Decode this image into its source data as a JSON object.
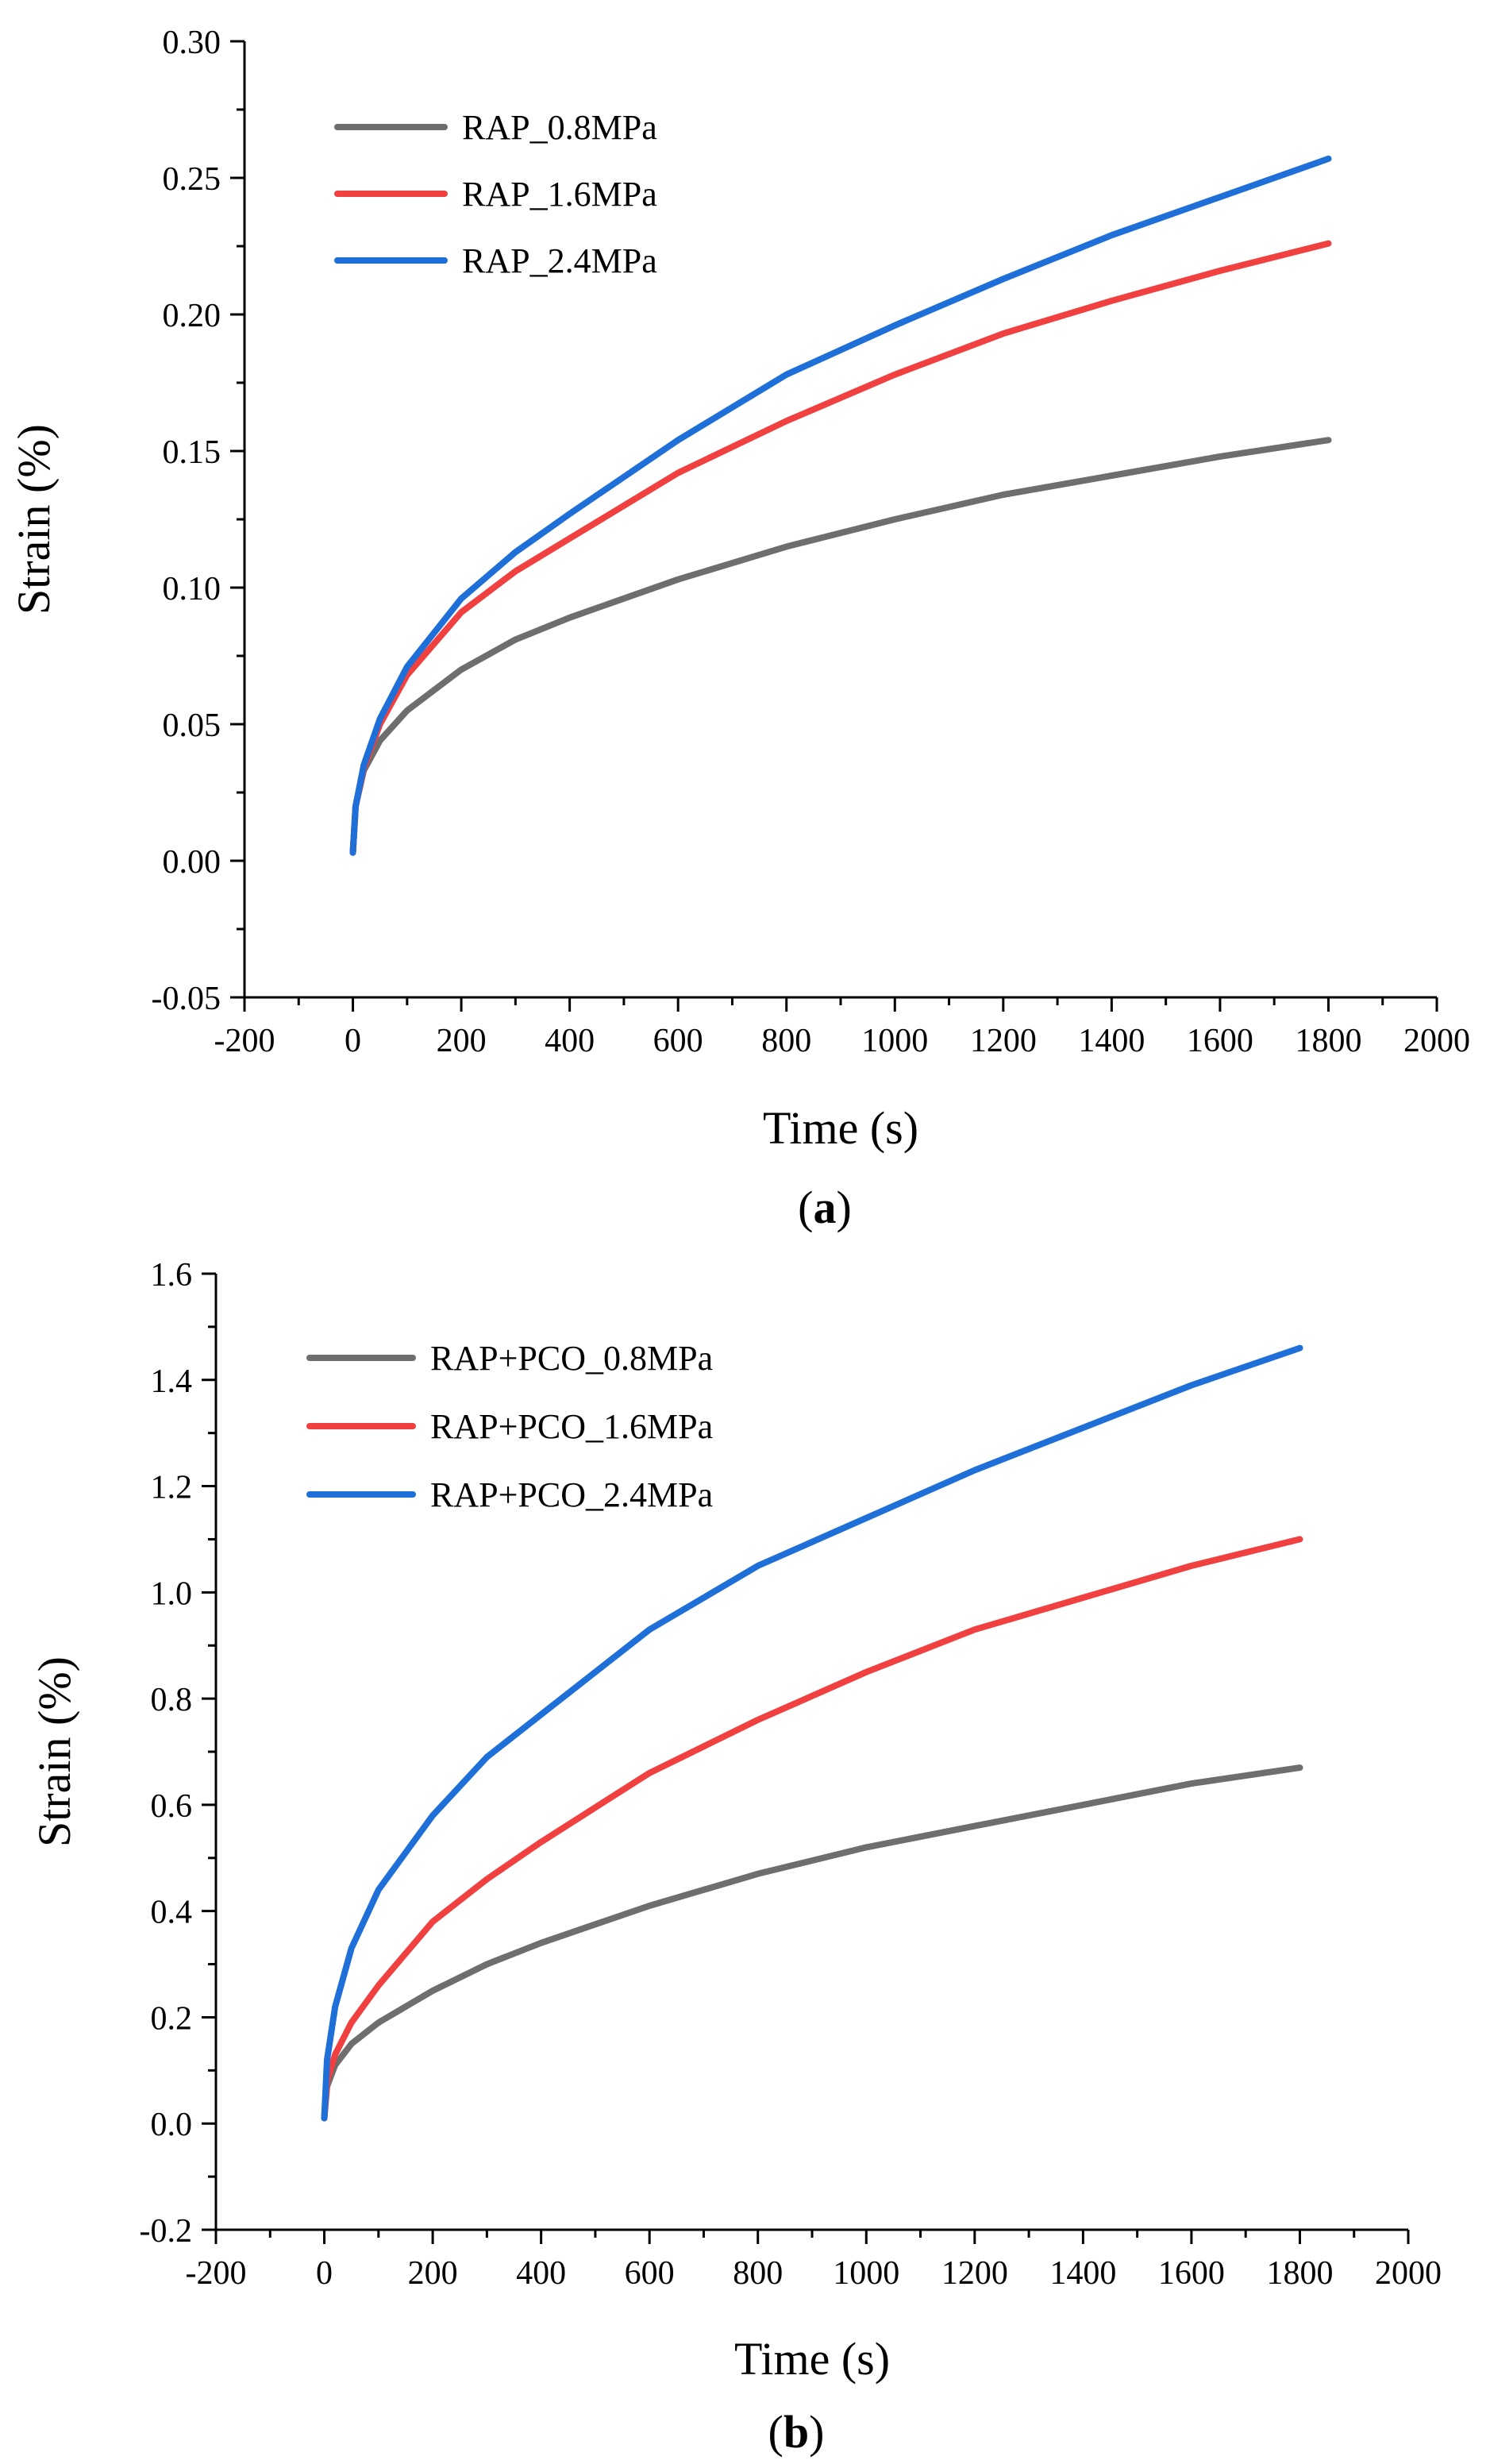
{
  "chart_data": [
    {
      "type": "line",
      "panel_label": "a",
      "xlabel": "Time (s)",
      "ylabel": "Strain (%)",
      "xlim": [
        -200,
        2000
      ],
      "ylim": [
        -0.05,
        0.3
      ],
      "x_ticks": [
        -200,
        0,
        200,
        400,
        600,
        800,
        1000,
        1200,
        1400,
        1600,
        1800,
        2000
      ],
      "x_tick_labels": [
        "-200",
        "0",
        "200",
        "400",
        "600",
        "800",
        "1000",
        "1200",
        "1400",
        "1600",
        "1800",
        "2000"
      ],
      "y_ticks": [
        -0.05,
        0.0,
        0.05,
        0.1,
        0.15,
        0.2,
        0.25,
        0.3
      ],
      "y_tick_labels": [
        "-0.05",
        "0.00",
        "0.05",
        "0.10",
        "0.15",
        "0.20",
        "0.25",
        "0.30"
      ],
      "legend_position": "top-left",
      "grid": false,
      "x": [
        0,
        5,
        20,
        50,
        100,
        200,
        300,
        400,
        600,
        800,
        1000,
        1200,
        1400,
        1600,
        1800
      ],
      "series": [
        {
          "name": "RAP_0.8MPa",
          "color": "#6e6e6e",
          "values": [
            0.003,
            0.02,
            0.033,
            0.044,
            0.055,
            0.07,
            0.081,
            0.089,
            0.103,
            0.115,
            0.125,
            0.134,
            0.141,
            0.148,
            0.154
          ]
        },
        {
          "name": "RAP_1.6MPa",
          "color": "#f04040",
          "values": [
            0.003,
            0.02,
            0.034,
            0.05,
            0.068,
            0.091,
            0.106,
            0.118,
            0.142,
            0.161,
            0.178,
            0.193,
            0.205,
            0.216,
            0.226
          ]
        },
        {
          "name": "RAP_2.4MPa",
          "color": "#1f6fd8",
          "values": [
            0.003,
            0.02,
            0.035,
            0.052,
            0.071,
            0.096,
            0.113,
            0.127,
            0.154,
            0.178,
            0.196,
            0.213,
            0.229,
            0.243,
            0.257
          ]
        }
      ]
    },
    {
      "type": "line",
      "panel_label": "b",
      "xlabel": "Time (s)",
      "ylabel": "Strain (%)",
      "xlim": [
        -200,
        2000
      ],
      "ylim": [
        -0.2,
        1.6
      ],
      "x_ticks": [
        -200,
        0,
        200,
        400,
        600,
        800,
        1000,
        1200,
        1400,
        1600,
        1800,
        2000
      ],
      "x_tick_labels": [
        "-200",
        "0",
        "200",
        "400",
        "600",
        "800",
        "1000",
        "1200",
        "1400",
        "1600",
        "1800",
        "2000"
      ],
      "y_ticks": [
        -0.2,
        0.0,
        0.2,
        0.4,
        0.6,
        0.8,
        1.0,
        1.2,
        1.4,
        1.6
      ],
      "y_tick_labels": [
        "-0.2",
        "0.0",
        "0.2",
        "0.4",
        "0.6",
        "0.8",
        "1.0",
        "1.2",
        "1.4",
        "1.6"
      ],
      "legend_position": "top-left",
      "grid": false,
      "x": [
        0,
        5,
        20,
        50,
        100,
        200,
        300,
        400,
        600,
        800,
        1000,
        1200,
        1400,
        1600,
        1800
      ],
      "series": [
        {
          "name": "RAP+PCO_0.8MPa",
          "color": "#6e6e6e",
          "values": [
            0.01,
            0.07,
            0.11,
            0.15,
            0.19,
            0.25,
            0.3,
            0.34,
            0.41,
            0.47,
            0.52,
            0.56,
            0.6,
            0.64,
            0.67
          ]
        },
        {
          "name": "RAP+PCO_1.6MPa",
          "color": "#f04040",
          "values": [
            0.01,
            0.08,
            0.13,
            0.19,
            0.26,
            0.38,
            0.46,
            0.53,
            0.66,
            0.76,
            0.85,
            0.93,
            0.99,
            1.05,
            1.1
          ]
        },
        {
          "name": "RAP+PCO_2.4MPa",
          "color": "#1f6fd8",
          "values": [
            0.01,
            0.12,
            0.22,
            0.33,
            0.44,
            0.58,
            0.69,
            0.77,
            0.93,
            1.05,
            1.14,
            1.23,
            1.31,
            1.39,
            1.46
          ]
        }
      ]
    }
  ]
}
